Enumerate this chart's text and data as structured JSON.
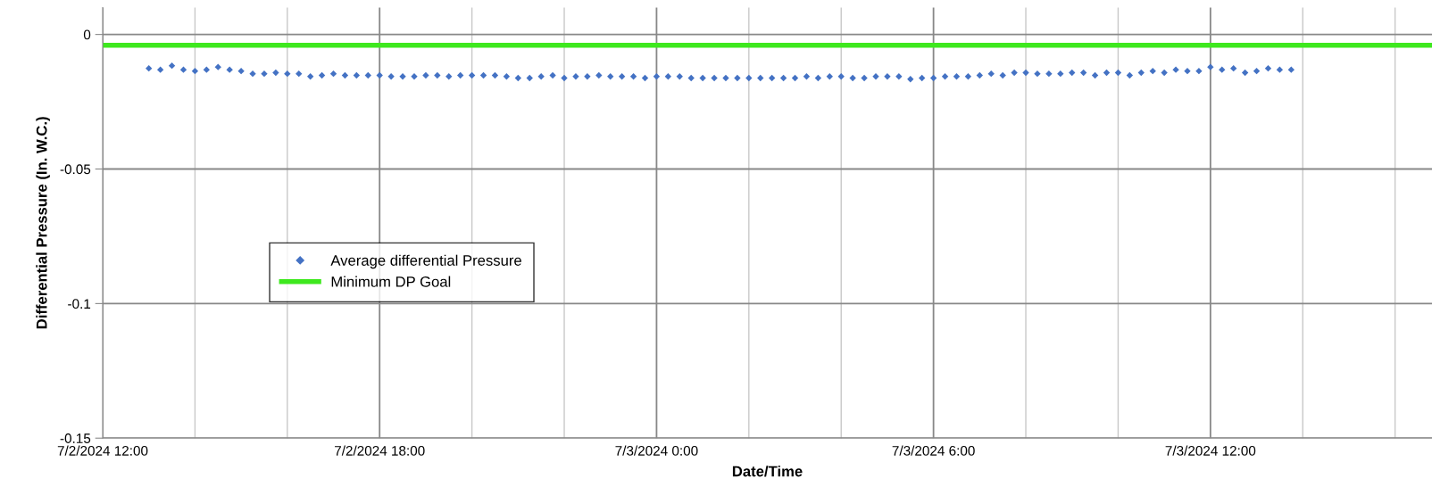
{
  "chart_data": {
    "type": "scatter",
    "xlabel": "Date/Time",
    "ylabel": "Differential Pressure (In. W.C.)",
    "xlim": [
      "2024-07-02T12:00",
      "2024-07-03T16:48"
    ],
    "xticks": [
      {
        "value": "2024-07-02T12:00",
        "label": "7/2/2024 12:00"
      },
      {
        "value": "2024-07-02T14:00",
        "label": null
      },
      {
        "value": "2024-07-02T16:00",
        "label": null
      },
      {
        "value": "2024-07-02T18:00",
        "label": "7/2/2024 18:00"
      },
      {
        "value": "2024-07-02T20:00",
        "label": null
      },
      {
        "value": "2024-07-02T22:00",
        "label": null
      },
      {
        "value": "2024-07-03T00:00",
        "label": "7/3/2024 0:00"
      },
      {
        "value": "2024-07-03T02:00",
        "label": null
      },
      {
        "value": "2024-07-03T04:00",
        "label": null
      },
      {
        "value": "2024-07-03T06:00",
        "label": "7/3/2024 6:00"
      },
      {
        "value": "2024-07-03T08:00",
        "label": null
      },
      {
        "value": "2024-07-03T10:00",
        "label": null
      },
      {
        "value": "2024-07-03T12:00",
        "label": "7/3/2024 12:00"
      },
      {
        "value": "2024-07-03T14:00",
        "label": null
      },
      {
        "value": "2024-07-03T16:00",
        "label": null
      }
    ],
    "ylim": [
      -0.15,
      0.01
    ],
    "yticks": [
      {
        "value": 0,
        "label": "0"
      },
      {
        "value": -0.05,
        "label": "-0.05"
      },
      {
        "value": -0.1,
        "label": "-0.1"
      },
      {
        "value": -0.15,
        "label": "-0.15"
      }
    ],
    "grid": true,
    "legend": "center left",
    "series": [
      {
        "name": "Average differential Pressure",
        "color": "#4472c4",
        "marker": "diamond",
        "x": [
          "2024-07-02T13:00",
          "2024-07-02T13:15",
          "2024-07-02T13:30",
          "2024-07-02T13:45",
          "2024-07-02T14:00",
          "2024-07-02T14:15",
          "2024-07-02T14:30",
          "2024-07-02T14:45",
          "2024-07-02T15:00",
          "2024-07-02T15:15",
          "2024-07-02T15:30",
          "2024-07-02T15:45",
          "2024-07-02T16:00",
          "2024-07-02T16:15",
          "2024-07-02T16:30",
          "2024-07-02T16:45",
          "2024-07-02T17:00",
          "2024-07-02T17:15",
          "2024-07-02T17:30",
          "2024-07-02T17:45",
          "2024-07-02T18:00",
          "2024-07-02T18:15",
          "2024-07-02T18:30",
          "2024-07-02T18:45",
          "2024-07-02T19:00",
          "2024-07-02T19:15",
          "2024-07-02T19:30",
          "2024-07-02T19:45",
          "2024-07-02T20:00",
          "2024-07-02T20:15",
          "2024-07-02T20:30",
          "2024-07-02T20:45",
          "2024-07-02T21:00",
          "2024-07-02T21:15",
          "2024-07-02T21:30",
          "2024-07-02T21:45",
          "2024-07-02T22:00",
          "2024-07-02T22:15",
          "2024-07-02T22:30",
          "2024-07-02T22:45",
          "2024-07-02T23:00",
          "2024-07-02T23:15",
          "2024-07-02T23:30",
          "2024-07-02T23:45",
          "2024-07-03T00:00",
          "2024-07-03T00:15",
          "2024-07-03T00:30",
          "2024-07-03T00:45",
          "2024-07-03T01:00",
          "2024-07-03T01:15",
          "2024-07-03T01:30",
          "2024-07-03T01:45",
          "2024-07-03T02:00",
          "2024-07-03T02:15",
          "2024-07-03T02:30",
          "2024-07-03T02:45",
          "2024-07-03T03:00",
          "2024-07-03T03:15",
          "2024-07-03T03:30",
          "2024-07-03T03:45",
          "2024-07-03T04:00",
          "2024-07-03T04:15",
          "2024-07-03T04:30",
          "2024-07-03T04:45",
          "2024-07-03T05:00",
          "2024-07-03T05:15",
          "2024-07-03T05:30",
          "2024-07-03T05:45",
          "2024-07-03T06:00",
          "2024-07-03T06:15",
          "2024-07-03T06:30",
          "2024-07-03T06:45",
          "2024-07-03T07:00",
          "2024-07-03T07:15",
          "2024-07-03T07:30",
          "2024-07-03T07:45",
          "2024-07-03T08:00",
          "2024-07-03T08:15",
          "2024-07-03T08:30",
          "2024-07-03T08:45",
          "2024-07-03T09:00",
          "2024-07-03T09:15",
          "2024-07-03T09:30",
          "2024-07-03T09:45",
          "2024-07-03T10:00",
          "2024-07-03T10:15",
          "2024-07-03T10:30",
          "2024-07-03T10:45",
          "2024-07-03T11:00",
          "2024-07-03T11:15",
          "2024-07-03T11:30",
          "2024-07-03T11:45",
          "2024-07-03T12:00",
          "2024-07-03T12:15",
          "2024-07-03T12:30",
          "2024-07-03T12:45",
          "2024-07-03T13:00",
          "2024-07-03T13:15",
          "2024-07-03T13:30",
          "2024-07-03T13:45"
        ],
        "values": [
          -0.0126,
          -0.0131,
          -0.0116,
          -0.0131,
          -0.0136,
          -0.0131,
          -0.0121,
          -0.0131,
          -0.0136,
          -0.0146,
          -0.0146,
          -0.0142,
          -0.0146,
          -0.0146,
          -0.0156,
          -0.0152,
          -0.0146,
          -0.0152,
          -0.0152,
          -0.0152,
          -0.0152,
          -0.0156,
          -0.0156,
          -0.0156,
          -0.0152,
          -0.0152,
          -0.0156,
          -0.0152,
          -0.0152,
          -0.0152,
          -0.0152,
          -0.0156,
          -0.0162,
          -0.0162,
          -0.0156,
          -0.0152,
          -0.0162,
          -0.0156,
          -0.0156,
          -0.0152,
          -0.0156,
          -0.0156,
          -0.0156,
          -0.0162,
          -0.0156,
          -0.0156,
          -0.0156,
          -0.0162,
          -0.0162,
          -0.0162,
          -0.0162,
          -0.0162,
          -0.0162,
          -0.0162,
          -0.0162,
          -0.0162,
          -0.0162,
          -0.0156,
          -0.0162,
          -0.0156,
          -0.0156,
          -0.0162,
          -0.0162,
          -0.0156,
          -0.0156,
          -0.0156,
          -0.0166,
          -0.0162,
          -0.0162,
          -0.0156,
          -0.0156,
          -0.0156,
          -0.0152,
          -0.0146,
          -0.0152,
          -0.0142,
          -0.0142,
          -0.0146,
          -0.0146,
          -0.0146,
          -0.0142,
          -0.0142,
          -0.0152,
          -0.0142,
          -0.0142,
          -0.0152,
          -0.0142,
          -0.0136,
          -0.0142,
          -0.0131,
          -0.0136,
          -0.0136,
          -0.0121,
          -0.0131,
          -0.0126,
          -0.0142,
          -0.0136,
          -0.0126,
          -0.0131,
          -0.0131
        ]
      },
      {
        "name": "Minimum DP Goal",
        "color": "#3ee81e",
        "type": "line",
        "x": [
          "2024-07-02T12:00",
          "2024-07-03T16:48"
        ],
        "values": [
          -0.004,
          -0.004
        ]
      }
    ]
  }
}
